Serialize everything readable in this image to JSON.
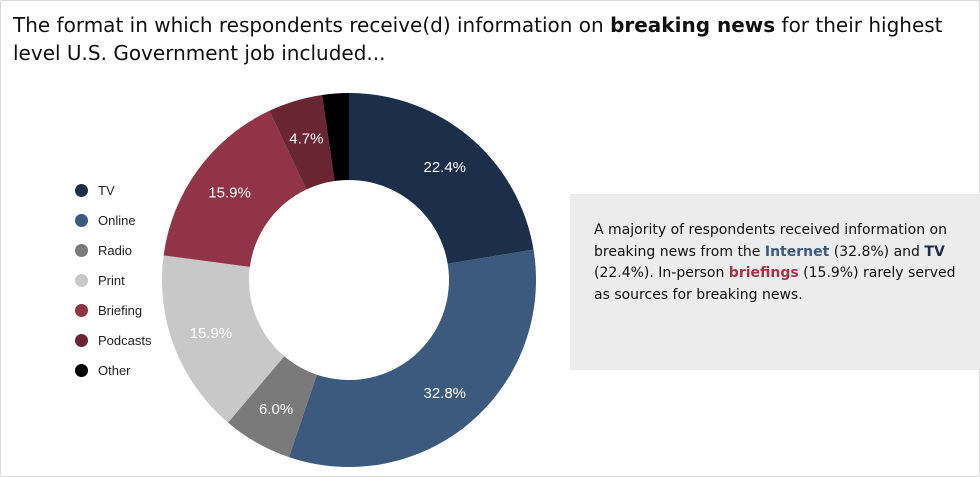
{
  "title": {
    "prefix": "The format in which respondents receive(d) information on ",
    "bold": "breaking news",
    "suffix": " for their highest level U.S. Government job included..."
  },
  "chart_data": {
    "type": "pie",
    "style": "donut",
    "title": "The format in which respondents receive(d) information on breaking news for their highest level U.S. Government job included...",
    "legend_position": "left",
    "start_angle_deg": 0,
    "direction": "clockwise",
    "slices": [
      {
        "name": "TV",
        "value": 22.4,
        "label": "22.4%",
        "color": "#1b2f4b",
        "label_color": "#ffffff"
      },
      {
        "name": "Online",
        "value": 32.8,
        "label": "32.8%",
        "color": "#3b5a7e",
        "label_color": "#ffffff"
      },
      {
        "name": "Radio",
        "value": 6.0,
        "label": "6.0%",
        "color": "#7a7a7a",
        "label_color": "#ffffff"
      },
      {
        "name": "Print",
        "value": 15.9,
        "label": "15.9%",
        "color": "#c8c8c8",
        "label_color": "#ffffff"
      },
      {
        "name": "Briefing",
        "value": 15.9,
        "label": "15.9%",
        "color": "#913447",
        "label_color": "#ffffff"
      },
      {
        "name": "Podcasts",
        "value": 4.7,
        "label": "4.7%",
        "color": "#6a2533",
        "label_color": "#ffffff"
      },
      {
        "name": "Other",
        "value": 2.3,
        "label": "",
        "color": "#000000",
        "label_color": "#ffffff"
      }
    ]
  },
  "callout": {
    "t1": "A majority of respondents received information on breaking news from the ",
    "internet": "Internet",
    "t2": " (32.8%) and ",
    "tv": "TV",
    "t3": " (22.4%). In-person ",
    "briefings": "briefings",
    "t4": " (15.9%) rarely served as sources for breaking news."
  }
}
